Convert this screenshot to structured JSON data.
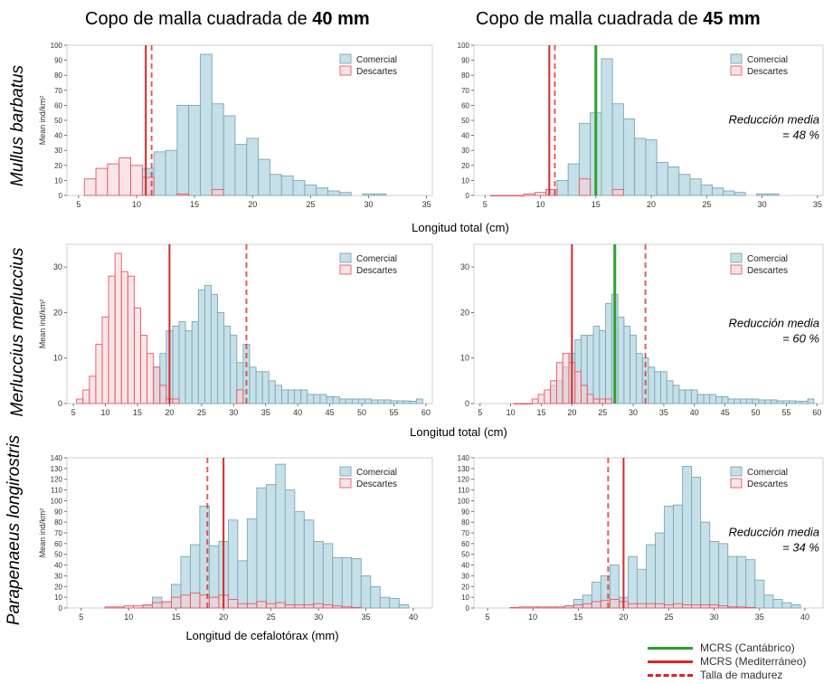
{
  "column_titles": [
    {
      "prefix": "Copo de malla cuadrada de ",
      "bold": "40 mm"
    },
    {
      "prefix": "Copo de malla cuadrada de ",
      "bold": "45 mm"
    }
  ],
  "species": [
    "Mullus barbatus",
    "Merluccius merluccius",
    "Parapenaeus longirostris"
  ],
  "xlabels": [
    "Longitud total (cm)",
    "Longitud total (cm)",
    "Longitud de cefalotórax (mm)"
  ],
  "ylabel": "Mean ind/km²",
  "legend_series": [
    "Comercial",
    "Descartes"
  ],
  "reduction_label": "Reducción media",
  "reductions": [
    "= 48 %",
    "= 60 %",
    "= 34 %"
  ],
  "bottom_legend": [
    {
      "label": "MCRS (Cantábrico)",
      "color": "#2ca02c",
      "style": "solid"
    },
    {
      "label": "MCRS (Mediterráneo)",
      "color": "#d62728",
      "style": "solid"
    },
    {
      "label": "Talla de madurez",
      "color": "#d62728",
      "style": "dashed"
    }
  ],
  "colors": {
    "comercial_fill": "#c5e0e8",
    "comercial_stroke": "#7fa6b3",
    "descartes_fill": "#f8d0d3",
    "descartes_stroke": "#e05a66",
    "green": "#2ca02c",
    "red": "#d62728"
  },
  "chart_data": [
    {
      "type": "bar",
      "panel": "Mullus barbatus - 40 mm",
      "xlim": [
        4,
        35.5
      ],
      "ylim": [
        0,
        100
      ],
      "xticks": [
        5,
        10,
        15,
        20,
        25,
        30,
        35
      ],
      "yticks": [
        0,
        10,
        20,
        30,
        40,
        50,
        60,
        70,
        80,
        90,
        100
      ],
      "bin_width": 1,
      "series": [
        {
          "name": "Comercial",
          "x": [
            11,
            12,
            13,
            14,
            15,
            16,
            17,
            18,
            19,
            20,
            21,
            22,
            23,
            24,
            25,
            26,
            27,
            28,
            30,
            31
          ],
          "values": [
            18,
            29,
            30,
            60,
            60,
            94,
            61,
            53,
            34,
            38,
            24,
            14,
            13,
            10,
            7,
            5,
            3,
            2,
            1,
            1
          ]
        },
        {
          "name": "Descartes",
          "x": [
            6,
            7,
            8,
            9,
            10,
            11,
            14,
            17
          ],
          "values": [
            11,
            18,
            21,
            25,
            20,
            12,
            1,
            4
          ]
        }
      ],
      "vlines": [
        {
          "x": 10.8,
          "color": "red",
          "style": "solid"
        },
        {
          "x": 11.3,
          "color": "red",
          "style": "dashed"
        }
      ],
      "reduction": null
    },
    {
      "type": "bar",
      "panel": "Mullus barbatus - 45 mm",
      "xlim": [
        4,
        35.5
      ],
      "ylim": [
        0,
        100
      ],
      "xticks": [
        5,
        10,
        15,
        20,
        25,
        30,
        35
      ],
      "yticks": [
        0,
        10,
        20,
        30,
        40,
        50,
        60,
        70,
        80,
        90,
        100
      ],
      "bin_width": 1,
      "series": [
        {
          "name": "Comercial",
          "x": [
            11,
            12,
            13,
            14,
            15,
            16,
            17,
            18,
            19,
            20,
            21,
            22,
            23,
            24,
            25,
            26,
            27,
            28,
            30,
            31
          ],
          "values": [
            4,
            10,
            21,
            48,
            55,
            91,
            61,
            51,
            38,
            37,
            22,
            19,
            14,
            11,
            7,
            5,
            3,
            2,
            1,
            1
          ]
        },
        {
          "name": "Descartes",
          "x": [
            6,
            7,
            8,
            9,
            10,
            11,
            14,
            17
          ],
          "values": [
            0,
            0,
            0,
            1,
            2,
            4,
            11,
            4
          ]
        }
      ],
      "vlines": [
        {
          "x": 10.8,
          "color": "red",
          "style": "solid"
        },
        {
          "x": 11.3,
          "color": "red",
          "style": "dashed"
        },
        {
          "x": 15,
          "color": "green",
          "style": "solid"
        }
      ],
      "reduction": "= 48 %"
    },
    {
      "type": "bar",
      "panel": "Merluccius merluccius - 40 mm",
      "xlim": [
        4,
        61
      ],
      "ylim": [
        0,
        35
      ],
      "xticks": [
        5,
        10,
        15,
        20,
        25,
        30,
        35,
        40,
        45,
        50,
        55,
        60
      ],
      "yticks": [
        0,
        10,
        20,
        30
      ],
      "bin_width": 1,
      "series": [
        {
          "name": "Comercial",
          "x": [
            18,
            19,
            20,
            21,
            22,
            23,
            24,
            25,
            26,
            27,
            28,
            29,
            30,
            31,
            32,
            33,
            34,
            35,
            36,
            37,
            38,
            39,
            40,
            41,
            42,
            43,
            44,
            45,
            46,
            47,
            48,
            49,
            50,
            51,
            52,
            53,
            54,
            55,
            56,
            57,
            58,
            59
          ],
          "values": [
            8,
            11,
            16,
            17,
            18,
            16,
            18,
            25,
            26,
            24,
            20,
            17,
            15,
            9,
            13,
            8,
            7,
            7,
            5,
            4,
            3,
            3,
            3,
            3,
            2,
            2,
            2,
            1.5,
            1.5,
            1,
            1,
            1,
            1,
            1,
            0.8,
            0.8,
            0.8,
            0.6,
            0.6,
            0.6,
            0.5,
            1
          ]
        },
        {
          "name": "Descartes",
          "x": [
            6,
            7,
            8,
            9,
            10,
            11,
            12,
            13,
            14,
            15,
            16,
            17,
            18,
            19,
            20,
            21,
            31
          ],
          "values": [
            1,
            3,
            6,
            13,
            19,
            28,
            33,
            29,
            28,
            21,
            15,
            11,
            8,
            4,
            1,
            1,
            3
          ]
        }
      ],
      "vlines": [
        {
          "x": 20,
          "color": "red",
          "style": "solid"
        },
        {
          "x": 32,
          "color": "red",
          "style": "dashed"
        }
      ],
      "reduction": null
    },
    {
      "type": "bar",
      "panel": "Merluccius merluccius - 45 mm",
      "xlim": [
        4,
        61
      ],
      "ylim": [
        0,
        35
      ],
      "xticks": [
        5,
        10,
        15,
        20,
        25,
        30,
        35,
        40,
        45,
        50,
        55,
        60
      ],
      "yticks": [
        0,
        10,
        20,
        30
      ],
      "bin_width": 1,
      "series": [
        {
          "name": "Comercial",
          "x": [
            17,
            18,
            19,
            20,
            21,
            22,
            23,
            24,
            25,
            26,
            27,
            28,
            29,
            30,
            31,
            32,
            33,
            34,
            35,
            36,
            37,
            38,
            39,
            40,
            41,
            42,
            43,
            44,
            45,
            46,
            47,
            48,
            49,
            50,
            51,
            52,
            53,
            54,
            55,
            56,
            57,
            58,
            59
          ],
          "values": [
            4,
            5,
            8,
            11,
            14,
            15,
            15,
            17,
            16,
            22,
            24,
            19,
            17,
            15,
            11,
            10,
            8,
            7,
            7,
            5,
            4,
            3,
            3,
            3,
            2,
            2,
            2,
            1.5,
            1.5,
            1,
            1,
            1,
            1,
            1,
            0.8,
            0.8,
            0.8,
            0.6,
            0.6,
            0.6,
            0.5,
            0.5,
            1
          ]
        },
        {
          "name": "Descartes",
          "x": [
            11,
            12,
            13,
            14,
            15,
            16,
            17,
            18,
            19,
            20,
            21,
            22,
            23,
            24,
            25,
            26
          ],
          "values": [
            0,
            0,
            0,
            1,
            2,
            3,
            5,
            9,
            11,
            9,
            7,
            4,
            2,
            1,
            1,
            1
          ]
        }
      ],
      "vlines": [
        {
          "x": 20,
          "color": "red",
          "style": "solid"
        },
        {
          "x": 32,
          "color": "red",
          "style": "dashed"
        },
        {
          "x": 27,
          "color": "green",
          "style": "solid"
        }
      ],
      "reduction": "= 60 %"
    },
    {
      "type": "bar",
      "panel": "Parapenaeus longirostris - 40 mm",
      "xlim": [
        3.5,
        42
      ],
      "ylim": [
        0,
        140
      ],
      "xticks": [
        5,
        10,
        15,
        20,
        25,
        30,
        35,
        40
      ],
      "yticks": [
        0,
        10,
        20,
        30,
        40,
        50,
        60,
        70,
        80,
        90,
        100,
        110,
        120,
        130,
        140
      ],
      "bin_width": 1,
      "series": [
        {
          "name": "Comercial",
          "x": [
            12,
            13,
            14,
            15,
            16,
            17,
            18,
            19,
            20,
            21,
            22,
            23,
            24,
            25,
            26,
            27,
            28,
            29,
            30,
            31,
            32,
            33,
            34,
            35,
            36,
            37,
            38,
            39
          ],
          "values": [
            2,
            10,
            5,
            22,
            48,
            59,
            95,
            58,
            62,
            82,
            44,
            83,
            112,
            115,
            134,
            110,
            90,
            82,
            62,
            60,
            47,
            47,
            46,
            30,
            20,
            10,
            9,
            3
          ]
        },
        {
          "name": "Descartes",
          "x": [
            8,
            9,
            10,
            11,
            12,
            13,
            14,
            15,
            16,
            17,
            18,
            19,
            20,
            21,
            22,
            23,
            24,
            25,
            26,
            27,
            28,
            29,
            30,
            31,
            32,
            33,
            34
          ],
          "values": [
            1,
            1,
            2,
            2,
            3,
            5,
            6,
            10,
            12,
            14,
            12,
            10,
            12,
            8,
            4,
            4,
            6,
            4,
            5,
            3,
            3,
            3,
            4,
            3,
            2,
            1,
            0.5
          ]
        }
      ],
      "vlines": [
        {
          "x": 20,
          "color": "red",
          "style": "solid"
        },
        {
          "x": 18.3,
          "color": "red",
          "style": "dashed"
        }
      ],
      "reduction": null
    },
    {
      "type": "bar",
      "panel": "Parapenaeus longirostris - 45 mm",
      "xlim": [
        3.5,
        42
      ],
      "ylim": [
        0,
        140
      ],
      "xticks": [
        5,
        10,
        15,
        20,
        25,
        30,
        35,
        40
      ],
      "yticks": [
        0,
        10,
        20,
        30,
        40,
        50,
        60,
        70,
        80,
        90,
        100,
        110,
        120,
        130,
        140
      ],
      "bin_width": 1,
      "series": [
        {
          "name": "Comercial",
          "x": [
            14,
            15,
            16,
            17,
            18,
            19,
            20,
            21,
            22,
            23,
            24,
            25,
            26,
            27,
            28,
            29,
            30,
            31,
            32,
            33,
            34,
            35,
            36,
            37,
            38,
            39
          ],
          "values": [
            2,
            8,
            12,
            24,
            30,
            40,
            10,
            48,
            36,
            59,
            70,
            95,
            96,
            132,
            122,
            80,
            62,
            60,
            48,
            48,
            45,
            26,
            12,
            8,
            5,
            3
          ]
        },
        {
          "name": "Descartes",
          "x": [
            8,
            9,
            10,
            11,
            12,
            13,
            14,
            15,
            16,
            17,
            18,
            19,
            20,
            21,
            22,
            23,
            24,
            25,
            26,
            27,
            28,
            29,
            30,
            31,
            32,
            33,
            34
          ],
          "values": [
            0.5,
            1,
            1,
            1,
            1,
            1,
            2,
            3,
            4,
            6,
            7,
            8,
            6,
            4,
            4,
            4,
            4,
            3,
            4,
            3,
            3,
            3,
            3,
            2,
            1,
            1,
            0.5
          ]
        }
      ],
      "vlines": [
        {
          "x": 20,
          "color": "red",
          "style": "solid"
        },
        {
          "x": 18.3,
          "color": "red",
          "style": "dashed"
        }
      ],
      "reduction": "= 34 %"
    }
  ]
}
